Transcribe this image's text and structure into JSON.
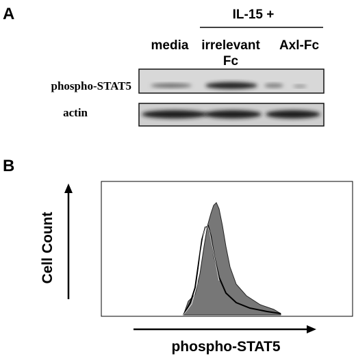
{
  "panel_a": {
    "letter": "A",
    "treatment_header": "IL-15 +",
    "lanes": [
      [
        "media"
      ],
      [
        "irrelevant",
        "Fc"
      ],
      [
        "Axl-Fc"
      ]
    ],
    "rows": [
      "phospho-STAT5",
      "actin"
    ]
  },
  "panel_b": {
    "letter": "B",
    "y_label": "Cell Count",
    "x_label": "phospho-STAT5"
  }
}
